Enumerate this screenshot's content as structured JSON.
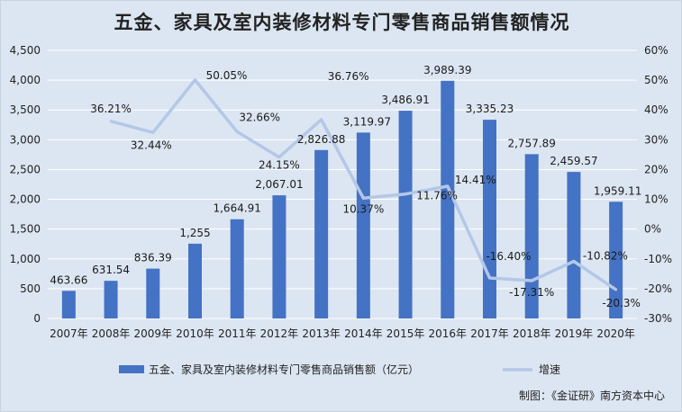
{
  "chart_data": {
    "type": "bar",
    "title": "五金、家具及室内装修材料专门零售商品销售额情况",
    "categories": [
      "2007年",
      "2008年",
      "2009年",
      "2010年",
      "2011年",
      "2012年",
      "2013年",
      "2014年",
      "2015年",
      "2016年",
      "2017年",
      "2018年",
      "2019年",
      "2020年"
    ],
    "series": [
      {
        "name": "五金、家具及室内装修材料专门零售商品销售额（亿元）",
        "type": "bar",
        "axis": "left",
        "color": "#4472c4",
        "values": [
          463.66,
          631.54,
          836.39,
          1255,
          1664.91,
          2067.01,
          2826.88,
          3119.97,
          3486.91,
          3989.39,
          3335.23,
          2757.89,
          2459.57,
          1959.11
        ],
        "labels": [
          "463.66",
          "631.54",
          "836.39",
          "1,255",
          "1,664.91",
          "2,067.01",
          "2,826.88",
          "3,119.97",
          "3,486.91",
          "3,989.39",
          "3,335.23",
          "2,757.89",
          "2,459.57",
          "1,959.11"
        ]
      },
      {
        "name": "增速",
        "type": "line",
        "axis": "right",
        "color": "#b4c7e7",
        "values": [
          null,
          36.21,
          32.44,
          50.05,
          32.66,
          24.15,
          36.76,
          10.37,
          11.76,
          14.41,
          -16.4,
          -17.31,
          -10.82,
          -20.3
        ],
        "labels": [
          "",
          "36.21%",
          "32.44%",
          "50.05%",
          "32.66%",
          "24.15%",
          "36.76%",
          "10.37%",
          "11.76%",
          "14.41%",
          "-16.40%",
          "-17.31%",
          "-10.82%",
          "-20.3%"
        ]
      }
    ],
    "y_left": {
      "range": [
        0,
        4500
      ],
      "ticks": [
        0,
        500,
        1000,
        1500,
        2000,
        2500,
        3000,
        3500,
        4000,
        4500
      ],
      "tick_labels": [
        "0",
        "500",
        "1,000",
        "1,500",
        "2,000",
        "2,500",
        "3,000",
        "3,500",
        "4,000",
        "4,500"
      ]
    },
    "y_right": {
      "range": [
        -30,
        60
      ],
      "ticks": [
        -30,
        -20,
        -10,
        0,
        10,
        20,
        30,
        40,
        50,
        60
      ],
      "tick_labels": [
        "-30%",
        "-20%",
        "-10%",
        "0%",
        "10%",
        "20%",
        "30%",
        "40%",
        "50%",
        "60%"
      ]
    },
    "grid": true,
    "legend_position": "bottom"
  },
  "credit": "制图：《金证研》南方资本中心"
}
